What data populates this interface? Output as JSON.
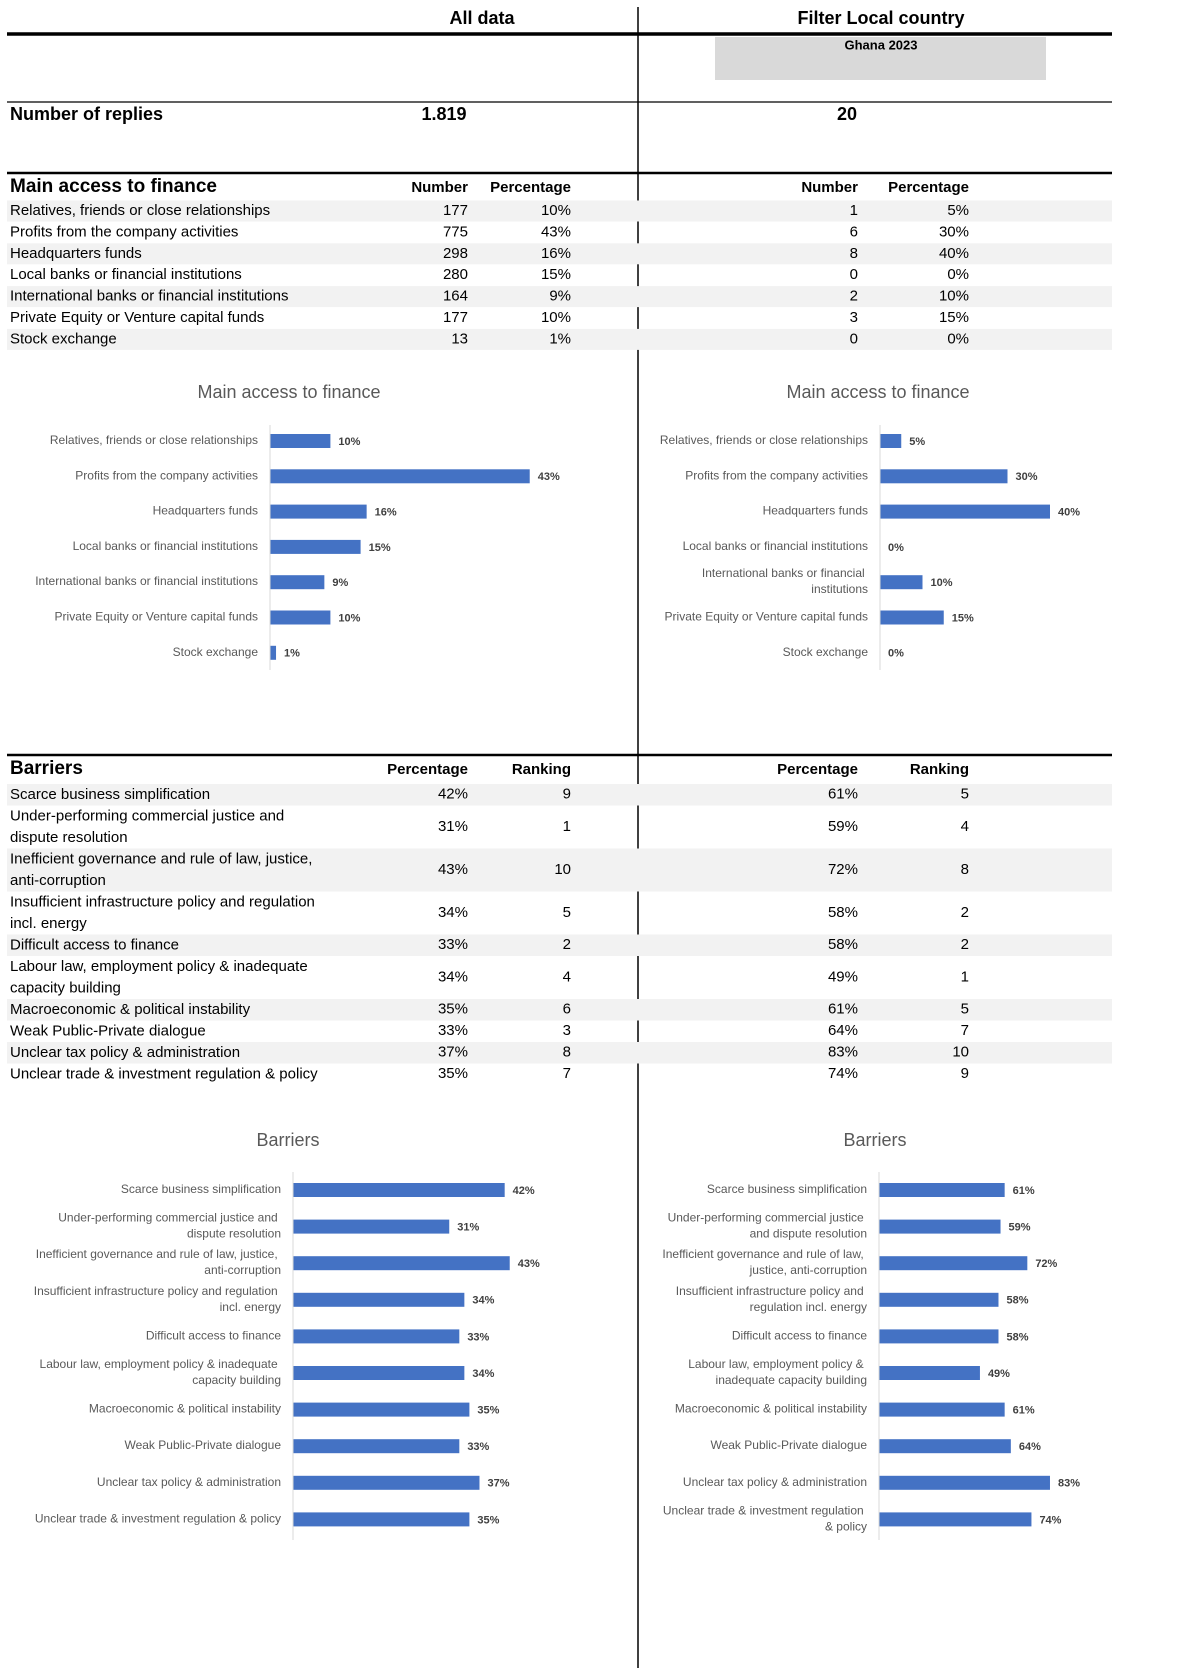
{
  "header": {
    "all_data": "All data",
    "filter_label": "Filter Local country",
    "filter_value": "Ghana 2023"
  },
  "replies": {
    "label": "Number of replies",
    "all_data": "1.819",
    "local": 20
  },
  "finance_table": {
    "title": "Main access to finance",
    "columns": [
      "Number",
      "Percentage"
    ],
    "rows": [
      {
        "label": "Relatives, friends or close relationships",
        "all_data": [
          177,
          "10%"
        ],
        "local": [
          1,
          "5%"
        ]
      },
      {
        "label": "Profits from the company activities",
        "all_data": [
          775,
          "43%"
        ],
        "local": [
          6,
          "30%"
        ]
      },
      {
        "label": "Headquarters funds",
        "all_data": [
          298,
          "16%"
        ],
        "local": [
          8,
          "40%"
        ]
      },
      {
        "label": "Local banks or financial institutions",
        "all_data": [
          280,
          "15%"
        ],
        "local": [
          0,
          "0%"
        ]
      },
      {
        "label": "International banks or financial institutions",
        "all_data": [
          164,
          "9%"
        ],
        "local": [
          2,
          "10%"
        ]
      },
      {
        "label": "Private Equity or Venture capital funds",
        "all_data": [
          177,
          "10%"
        ],
        "local": [
          3,
          "15%"
        ]
      },
      {
        "label": "Stock exchange",
        "all_data": [
          13,
          "1%"
        ],
        "local": [
          0,
          "0%"
        ]
      }
    ]
  },
  "barriers_table": {
    "title": "Barriers",
    "columns": [
      "Percentage",
      "Ranking"
    ],
    "rows": [
      {
        "label": "Scarce business simplification",
        "all_data": [
          "42%",
          9
        ],
        "local": [
          "61%",
          5
        ]
      },
      {
        "label": "Under-performing commercial justice and dispute resolution",
        "all_data": [
          "31%",
          1
        ],
        "local": [
          "59%",
          4
        ]
      },
      {
        "label": "Inefficient governance and rule of law, justice, anti-corruption",
        "all_data": [
          "43%",
          10
        ],
        "local": [
          "72%",
          8
        ]
      },
      {
        "label": "Insufficient infrastructure policy and regulation incl. energy",
        "all_data": [
          "34%",
          5
        ],
        "local": [
          "58%",
          2
        ]
      },
      {
        "label": "Difficult access to finance",
        "all_data": [
          "33%",
          2
        ],
        "local": [
          "58%",
          2
        ]
      },
      {
        "label": "Labour law, employment policy & inadequate capacity building",
        "all_data": [
          "34%",
          4
        ],
        "local": [
          "49%",
          1
        ]
      },
      {
        "label": "Macroeconomic & political instability",
        "all_data": [
          "35%",
          6
        ],
        "local": [
          "61%",
          5
        ]
      },
      {
        "label": "Weak Public-Private dialogue",
        "all_data": [
          "33%",
          3
        ],
        "local": [
          "64%",
          7
        ]
      },
      {
        "label": "Unclear tax policy & administration",
        "all_data": [
          "37%",
          8
        ],
        "local": [
          "83%",
          10
        ]
      },
      {
        "label": "Unclear trade & investment regulation & policy",
        "all_data": [
          "35%",
          7
        ],
        "local": [
          "74%",
          9
        ]
      }
    ]
  },
  "chart_data": [
    {
      "type": "bar",
      "orientation": "horizontal",
      "title": "Main access to finance",
      "color": "#4472c4",
      "xlim": [
        0,
        50
      ],
      "categories": [
        "Relatives, friends or close relationships",
        "Profits from the company activities",
        "Headquarters funds",
        "Local banks or financial institutions",
        "International banks or financial institutions",
        "Private Equity or Venture capital funds",
        "Stock exchange"
      ],
      "values": [
        10,
        43,
        16,
        15,
        9,
        10,
        1
      ],
      "value_labels": [
        "10%",
        "43%",
        "16%",
        "15%",
        "9%",
        "10%",
        "1%"
      ]
    },
    {
      "type": "bar",
      "orientation": "horizontal",
      "title": "Main access to finance",
      "color": "#4472c4",
      "xlim": [
        0,
        50
      ],
      "categories": [
        "Relatives, friends or close relationships",
        "Profits from the company activities",
        "Headquarters funds",
        "Local banks or financial institutions",
        "International banks or financial institutions",
        "Private Equity or Venture capital funds",
        "Stock exchange"
      ],
      "values": [
        5,
        30,
        40,
        0,
        10,
        15,
        0
      ],
      "value_labels": [
        "5%",
        "30%",
        "40%",
        "0%",
        "10%",
        "15%",
        "0%"
      ]
    },
    {
      "type": "bar",
      "orientation": "horizontal",
      "title": "Barriers",
      "color": "#4472c4",
      "xlim": [
        0,
        50
      ],
      "categories": [
        "Scarce business simplification",
        "Under-performing commercial justice and dispute resolution",
        "Inefficient governance and rule of law, justice, anti-corruption",
        "Insufficient infrastructure policy and regulation incl. energy",
        "Difficult access to finance",
        "Labour law, employment policy & inadequate capacity building",
        "Macroeconomic & political instability",
        "Weak Public-Private dialogue",
        "Unclear tax policy & administration",
        "Unclear trade & investment regulation & policy"
      ],
      "values": [
        42,
        31,
        43,
        34,
        33,
        34,
        35,
        33,
        37,
        35
      ],
      "value_labels": [
        "42%",
        "31%",
        "43%",
        "34%",
        "33%",
        "34%",
        "35%",
        "33%",
        "37%",
        "35%"
      ]
    },
    {
      "type": "bar",
      "orientation": "horizontal",
      "title": "Barriers",
      "color": "#4472c4",
      "xlim": [
        0,
        100
      ],
      "categories": [
        "Scarce business simplification",
        "Under-performing commercial justice and dispute resolution",
        "Inefficient governance and rule of law, justice, anti-corruption",
        "Insufficient infrastructure policy and regulation incl. energy",
        "Difficult access to finance",
        "Labour law, employment policy & inadequate capacity building",
        "Macroeconomic & political instability",
        "Weak Public-Private dialogue",
        "Unclear tax policy & administration",
        "Unclear trade & investment regulation & policy"
      ],
      "values": [
        61,
        59,
        72,
        58,
        58,
        49,
        61,
        64,
        83,
        74
      ],
      "value_labels": [
        "61%",
        "59%",
        "72%",
        "58%",
        "58%",
        "49%",
        "61%",
        "64%",
        "83%",
        "74%"
      ]
    }
  ]
}
